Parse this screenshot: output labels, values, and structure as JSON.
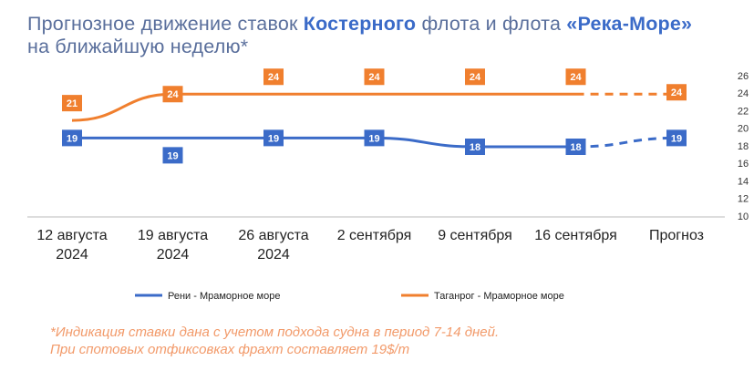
{
  "chart_data": {
    "type": "line",
    "title": [
      "Прогнозное движение ставок ",
      "Костерного",
      " флота и флота ",
      "«Река-Море»",
      " на ближайшую неделю*"
    ],
    "categories": [
      "12 августа 2024",
      "19 августа 2024",
      "26 августа 2024",
      "2 сентября",
      "9 сентября",
      "16 сентября",
      "Прогноз"
    ],
    "series": [
      {
        "name": "Рени - Мраморное море",
        "color": "#3b6bc8",
        "values": [
          19,
          19,
          19,
          19,
          18,
          18,
          19
        ]
      },
      {
        "name": "Таганрог - Мраморное море",
        "color": "#f07f2e",
        "values": [
          21,
          24,
          24,
          24,
          24,
          24,
          24
        ]
      }
    ],
    "forecast_index": 6,
    "ylim": [
      10,
      26
    ],
    "yticks": [
      10,
      12,
      14,
      16,
      18,
      20,
      22,
      24,
      26
    ],
    "note": [
      "*Индикация ставки дана с учетом подхода судна в период 7-14 дней.",
      "При спотовых отфиксовках фрахт составляет 19$/т"
    ]
  }
}
